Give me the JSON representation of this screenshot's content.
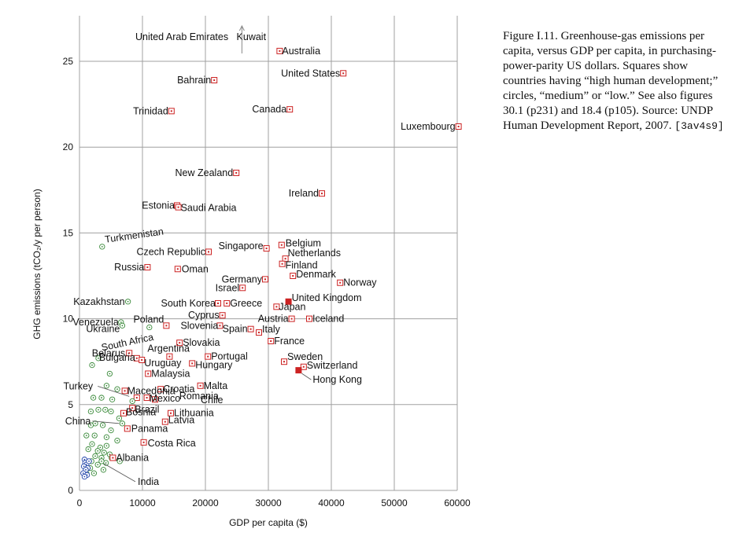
{
  "caption": {
    "text": "Figure I.11. Greenhouse-gas emissions per capita, versus GDP per capita, in purchasing-power-parity US dollars. Squares show countries having “high human development;” circles, “medium” or “low.” See also figures 30.1 (p231) and 18.4 (p105). Source: UNDP Human Development Report, 2007.",
    "code": "[3av4s9]"
  },
  "chart_data": {
    "type": "scatter",
    "title": "",
    "xlabel": "GDP per capita ($)",
    "ylabel": "GHG emissions (tCO₂/y per person)",
    "xlim": [
      0,
      60000
    ],
    "ylim": [
      0,
      26
    ],
    "xticks": [
      0,
      10000,
      20000,
      30000,
      40000,
      50000,
      60000
    ],
    "yticks": [
      0,
      5,
      10,
      15,
      20,
      25
    ],
    "grid": true,
    "colors": {
      "high": "#cc2222",
      "medium": "#3a8a3a",
      "low": "#2244aa",
      "grid": "#a0a0a0"
    },
    "offscale_note": {
      "text": "United Arab Emirates   Kuwait",
      "x": 25800
    },
    "high_development": [
      {
        "name": "Australia",
        "x": 31800,
        "y": 25.6
      },
      {
        "name": "United States",
        "x": 41900,
        "y": 24.3
      },
      {
        "name": "Bahrain",
        "x": 21400,
        "y": 23.9
      },
      {
        "name": "Trinidad",
        "x": 14600,
        "y": 22.1
      },
      {
        "name": "Canada",
        "x": 33400,
        "y": 22.2
      },
      {
        "name": "Luxembourg",
        "x": 60200,
        "y": 21.2
      },
      {
        "name": "New Zealand",
        "x": 24900,
        "y": 18.5
      },
      {
        "name": "Ireland",
        "x": 38500,
        "y": 17.3
      },
      {
        "name": "Estonia",
        "x": 15500,
        "y": 16.6
      },
      {
        "name": "Saudi Arabia",
        "x": 15700,
        "y": 16.5
      },
      {
        "name": "Singapore",
        "x": 29700,
        "y": 14.1
      },
      {
        "name": "Belgium",
        "x": 32100,
        "y": 14.3
      },
      {
        "name": "Czech Republic",
        "x": 20500,
        "y": 13.9
      },
      {
        "name": "Netherlands",
        "x": 32700,
        "y": 13.5
      },
      {
        "name": "Finland",
        "x": 32200,
        "y": 13.2
      },
      {
        "name": "Russia",
        "x": 10800,
        "y": 13.0
      },
      {
        "name": "Oman",
        "x": 15600,
        "y": 12.9
      },
      {
        "name": "Denmark",
        "x": 33900,
        "y": 12.5
      },
      {
        "name": "Germany",
        "x": 29500,
        "y": 12.3
      },
      {
        "name": "Norway",
        "x": 41400,
        "y": 12.1
      },
      {
        "name": "Israel",
        "x": 25900,
        "y": 11.8
      },
      {
        "name": "United Kingdom",
        "x": 33200,
        "y": 11.0,
        "filled": true
      },
      {
        "name": "South Korea",
        "x": 22000,
        "y": 10.9
      },
      {
        "name": "Greece",
        "x": 23400,
        "y": 10.9
      },
      {
        "name": "Japan",
        "x": 31300,
        "y": 10.7
      },
      {
        "name": "Cyprus",
        "x": 22700,
        "y": 10.2
      },
      {
        "name": "Austria",
        "x": 33700,
        "y": 10.0
      },
      {
        "name": "Iceland",
        "x": 36500,
        "y": 10.0
      },
      {
        "name": "Poland",
        "x": 13800,
        "y": 9.6
      },
      {
        "name": "Slovenia",
        "x": 22300,
        "y": 9.6
      },
      {
        "name": "Spain",
        "x": 27200,
        "y": 9.4
      },
      {
        "name": "Italy",
        "x": 28500,
        "y": 9.2
      },
      {
        "name": "France",
        "x": 30400,
        "y": 8.7
      },
      {
        "name": "Slovakia",
        "x": 15900,
        "y": 8.6
      },
      {
        "name": "Argentina",
        "x": 14300,
        "y": 7.8
      },
      {
        "name": "Portugal",
        "x": 20400,
        "y": 7.8
      },
      {
        "name": "Belarus",
        "x": 7900,
        "y": 8.0
      },
      {
        "name": "Bulgaria",
        "x": 9100,
        "y": 7.7
      },
      {
        "name": "Uruguay",
        "x": 9900,
        "y": 7.6
      },
      {
        "name": "Sweden",
        "x": 32500,
        "y": 7.5
      },
      {
        "name": "Hungary",
        "x": 17900,
        "y": 7.4
      },
      {
        "name": "Switzerland",
        "x": 35600,
        "y": 7.2
      },
      {
        "name": "Hong Kong",
        "x": 34800,
        "y": 7.0,
        "filled": true
      },
      {
        "name": "Malaysia",
        "x": 10900,
        "y": 6.8
      },
      {
        "name": "Malta",
        "x": 19200,
        "y": 6.1
      },
      {
        "name": "Croatia",
        "x": 12900,
        "y": 5.9
      },
      {
        "name": "Macedonia",
        "x": 7200,
        "y": 5.8
      },
      {
        "name": "Mexico",
        "x": 10700,
        "y": 5.4
      },
      {
        "name": "Romania",
        "x": 9100,
        "y": 5.4
      },
      {
        "name": "Chile",
        "x": 12000,
        "y": 5.3
      },
      {
        "name": "Brazil",
        "x": 8400,
        "y": 4.8
      },
      {
        "name": "Lithuania",
        "x": 14500,
        "y": 4.5
      },
      {
        "name": "Bosnia",
        "x": 7000,
        "y": 4.5
      },
      {
        "name": "Latvia",
        "x": 13600,
        "y": 4.0
      },
      {
        "name": "Panama",
        "x": 7600,
        "y": 3.6
      },
      {
        "name": "Costa Rica",
        "x": 10200,
        "y": 2.8
      },
      {
        "name": "Albania",
        "x": 5300,
        "y": 1.9
      }
    ],
    "medium_low_development": [
      {
        "name": "Turkmenistan",
        "x": 3600,
        "y": 14.2
      },
      {
        "name": "Kazakhstan",
        "x": 7700,
        "y": 11.0
      },
      {
        "name": "Venezuela",
        "x": 6600,
        "y": 9.8
      },
      {
        "name": "Ukraine",
        "x": 6800,
        "y": 9.6
      },
      {
        "name": "South Africa",
        "x": 11100,
        "y": 9.5
      },
      {
        "name": "Turkey",
        "x": 8400,
        "y": 5.2
      },
      {
        "name": "China",
        "x": 6800,
        "y": 3.9
      },
      {
        "name": "India",
        "x": 3500,
        "y": 1.7
      }
    ],
    "unlabeled_medium": [
      [
        2000,
        7.3
      ],
      [
        3000,
        7.7
      ],
      [
        4800,
        6.8
      ],
      [
        4300,
        6.1
      ],
      [
        6000,
        5.9
      ],
      [
        5200,
        5.3
      ],
      [
        3500,
        5.4
      ],
      [
        2200,
        5.4
      ],
      [
        1800,
        4.6
      ],
      [
        3000,
        4.7
      ],
      [
        4100,
        4.7
      ],
      [
        5000,
        4.6
      ],
      [
        6300,
        4.2
      ],
      [
        2500,
        3.9
      ],
      [
        1800,
        3.8
      ],
      [
        3700,
        3.8
      ],
      [
        5000,
        3.5
      ],
      [
        1100,
        3.2
      ],
      [
        2400,
        3.2
      ],
      [
        4300,
        3.1
      ],
      [
        6000,
        2.9
      ],
      [
        2000,
        2.7
      ],
      [
        3300,
        2.5
      ],
      [
        4300,
        2.6
      ],
      [
        1400,
        2.4
      ],
      [
        2900,
        2.3
      ],
      [
        3900,
        2.2
      ],
      [
        4800,
        2.1
      ],
      [
        2500,
        2.0
      ],
      [
        3500,
        1.9
      ],
      [
        1900,
        1.7
      ],
      [
        4200,
        1.6
      ],
      [
        2900,
        1.5
      ],
      [
        1700,
        1.3
      ],
      [
        3800,
        1.2
      ],
      [
        2300,
        1.0
      ],
      [
        1100,
        1.0
      ],
      [
        5100,
        1.9
      ],
      [
        6400,
        1.7
      ]
    ],
    "unlabeled_low": [
      [
        800,
        1.8
      ],
      [
        900,
        1.6
      ],
      [
        1100,
        1.5
      ],
      [
        700,
        1.4
      ],
      [
        1300,
        1.3
      ],
      [
        1000,
        1.2
      ],
      [
        600,
        1.0
      ],
      [
        1200,
        0.9
      ],
      [
        800,
        0.8
      ],
      [
        1500,
        1.7
      ]
    ]
  }
}
